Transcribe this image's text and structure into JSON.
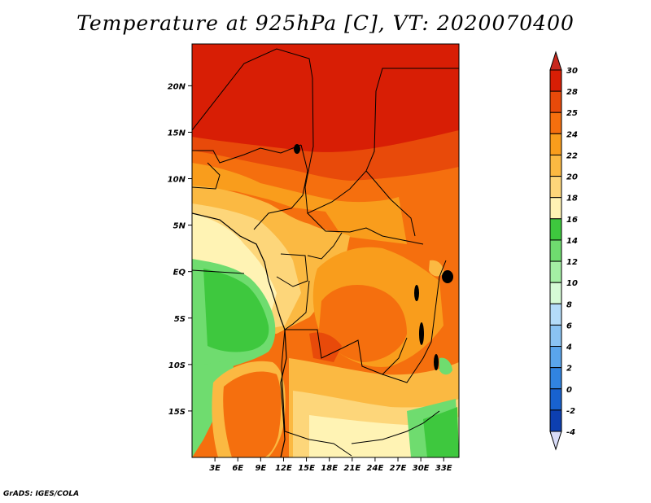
{
  "title": "Temperature at 925hPa [C], VT: 2020070400",
  "credit": "GrADS: IGES/COLA",
  "map": {
    "lon_labels": [
      "3E",
      "6E",
      "9E",
      "12E",
      "15E",
      "18E",
      "21E",
      "24E",
      "27E",
      "30E",
      "33E"
    ],
    "lat_labels": [
      "20N",
      "15N",
      "10N",
      "5N",
      "EQ",
      "5S",
      "10S",
      "15S"
    ],
    "lon_range": [
      0,
      35
    ],
    "lat_range": [
      -20,
      24.5
    ]
  },
  "colorbar": {
    "labels": [
      "30",
      "28",
      "25",
      "24",
      "22",
      "20",
      "18",
      "16",
      "14",
      "12",
      "10",
      "8",
      "6",
      "4",
      "2",
      "0",
      "-2",
      "-4"
    ],
    "colors": [
      "#d81e05",
      "#e84a0a",
      "#f56f0e",
      "#f99d1c",
      "#fbb942",
      "#fdd67a",
      "#fff3b4",
      "#3ec83e",
      "#6fdc6f",
      "#a4efa4",
      "#d6fbd6",
      "#b4dcf9",
      "#8ac3f3",
      "#5aa5ec",
      "#3184e1",
      "#1862cf",
      "#0d3fb0",
      "#0a1a78"
    ],
    "over_color": "#c8281e",
    "under_color": "#d8dcf8"
  }
}
